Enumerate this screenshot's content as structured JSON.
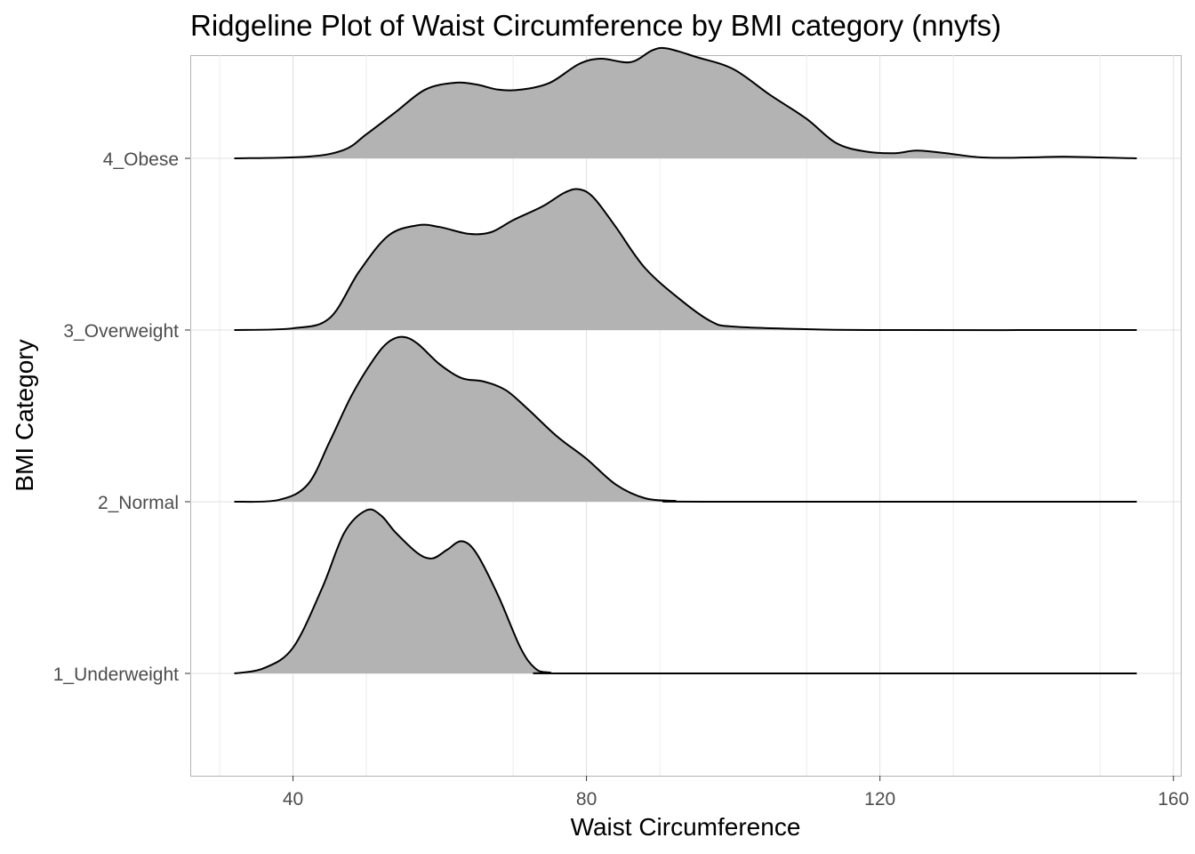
{
  "chart_data": {
    "type": "ridgeline",
    "title": "Ridgeline Plot of Waist Circumference by BMI category (nnyfs)",
    "xlabel": "Waist Circumference",
    "ylabel": "BMI Category",
    "xlim": [
      26,
      161
    ],
    "x_ticks": [
      40,
      80,
      120,
      160
    ],
    "categories": [
      "1_Underweight",
      "2_Normal",
      "3_Overweight",
      "4_Obese"
    ],
    "grid": true,
    "fill_color": "#b3b3b3",
    "line_color": "#000000",
    "series": [
      {
        "name": "1_Underweight",
        "points": [
          [
            32,
            0
          ],
          [
            36,
            0.03
          ],
          [
            40,
            0.15
          ],
          [
            44,
            0.5
          ],
          [
            47,
            0.82
          ],
          [
            50,
            0.95
          ],
          [
            52,
            0.92
          ],
          [
            54,
            0.82
          ],
          [
            57,
            0.7
          ],
          [
            59,
            0.67
          ],
          [
            61,
            0.72
          ],
          [
            63,
            0.77
          ],
          [
            65,
            0.7
          ],
          [
            68,
            0.45
          ],
          [
            71,
            0.15
          ],
          [
            73,
            0.03
          ],
          [
            75,
            0.005
          ],
          [
            80,
            0
          ],
          [
            155,
            0
          ]
        ]
      },
      {
        "name": "2_Normal",
        "points": [
          [
            32,
            0
          ],
          [
            38,
            0.01
          ],
          [
            42,
            0.1
          ],
          [
            45,
            0.35
          ],
          [
            48,
            0.62
          ],
          [
            51,
            0.83
          ],
          [
            53,
            0.93
          ],
          [
            55,
            0.96
          ],
          [
            57,
            0.92
          ],
          [
            60,
            0.8
          ],
          [
            63,
            0.72
          ],
          [
            66,
            0.7
          ],
          [
            69,
            0.65
          ],
          [
            72,
            0.54
          ],
          [
            76,
            0.38
          ],
          [
            80,
            0.25
          ],
          [
            84,
            0.1
          ],
          [
            88,
            0.02
          ],
          [
            92,
            0.005
          ],
          [
            96,
            0
          ],
          [
            155,
            0
          ]
        ]
      },
      {
        "name": "3_Overweight",
        "points": [
          [
            32,
            0
          ],
          [
            40,
            0.01
          ],
          [
            45,
            0.07
          ],
          [
            49,
            0.34
          ],
          [
            53,
            0.55
          ],
          [
            57,
            0.61
          ],
          [
            60,
            0.6
          ],
          [
            64,
            0.56
          ],
          [
            67,
            0.57
          ],
          [
            70,
            0.64
          ],
          [
            74,
            0.72
          ],
          [
            77,
            0.8
          ],
          [
            79,
            0.82
          ],
          [
            81,
            0.77
          ],
          [
            84,
            0.6
          ],
          [
            88,
            0.36
          ],
          [
            93,
            0.17
          ],
          [
            97,
            0.05
          ],
          [
            100,
            0.02
          ],
          [
            110,
            0.005
          ],
          [
            120,
            0
          ],
          [
            155,
            0
          ]
        ]
      },
      {
        "name": "4_Obese",
        "points": [
          [
            32,
            0
          ],
          [
            42,
            0.01
          ],
          [
            47,
            0.05
          ],
          [
            50,
            0.14
          ],
          [
            54,
            0.27
          ],
          [
            58,
            0.4
          ],
          [
            62,
            0.44
          ],
          [
            65,
            0.43
          ],
          [
            68,
            0.4
          ],
          [
            71,
            0.4
          ],
          [
            75,
            0.44
          ],
          [
            79,
            0.55
          ],
          [
            82,
            0.58
          ],
          [
            86,
            0.56
          ],
          [
            89,
            0.63
          ],
          [
            91,
            0.64
          ],
          [
            95,
            0.59
          ],
          [
            100,
            0.52
          ],
          [
            105,
            0.37
          ],
          [
            110,
            0.23
          ],
          [
            114,
            0.09
          ],
          [
            118,
            0.04
          ],
          [
            122,
            0.03
          ],
          [
            125,
            0.045
          ],
          [
            129,
            0.03
          ],
          [
            134,
            0.005
          ],
          [
            140,
            0.005
          ],
          [
            145,
            0.01
          ],
          [
            150,
            0.005
          ],
          [
            155,
            0
          ]
        ]
      }
    ]
  }
}
